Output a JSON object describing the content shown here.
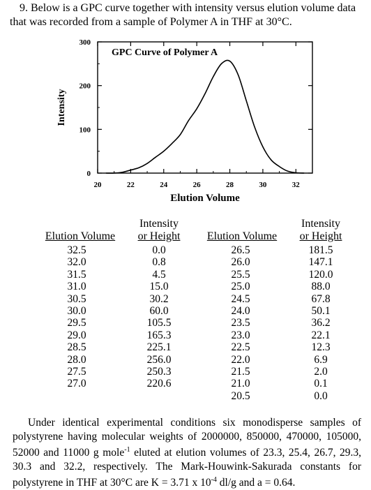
{
  "question": {
    "number": "9.",
    "text": "Below is a GPC curve together with intensity versus elution volume data that was recorded from a sample of Polymer A in THF at 30°C."
  },
  "chart_data": {
    "type": "line",
    "title": "GPC Curve of Polymer A",
    "xlabel": "Elution Volume",
    "ylabel": "Intensity",
    "xlim": [
      20,
      33
    ],
    "ylim": [
      0,
      300
    ],
    "x_ticks": [
      "20",
      "22",
      "24",
      "26",
      "28",
      "30",
      "32"
    ],
    "y_ticks": [
      "300",
      "200",
      "100",
      "0"
    ],
    "series": [
      {
        "x": [
          20.5,
          21.0,
          21.5,
          22.0,
          22.5,
          23.0,
          23.5,
          24.0,
          24.5,
          25.0,
          25.5,
          26.0,
          26.5,
          27.0,
          27.5,
          28.0,
          28.5,
          29.0,
          29.5,
          30.0,
          30.5,
          31.0,
          31.5,
          32.0,
          32.5
        ],
        "y": [
          0.0,
          0.1,
          2.0,
          6.9,
          12.3,
          22.1,
          36.2,
          50.1,
          67.8,
          88.0,
          120.0,
          147.1,
          181.5,
          220.6,
          250.3,
          256.0,
          225.1,
          165.3,
          105.5,
          60.0,
          30.2,
          15.0,
          4.5,
          0.8,
          0.0
        ]
      }
    ]
  },
  "table": {
    "headers": {
      "elution": "Elution Volume",
      "intensity_line1": "Intensity",
      "intensity_line2": "or Height"
    },
    "left": {
      "elution": [
        "32.5",
        "32.0",
        "31.5",
        "31.0",
        "30.5",
        "30.0",
        "29.5",
        "29.0",
        "28.5",
        "28.0",
        "27.5",
        "27.0"
      ],
      "intensity": [
        "0.0",
        "0.8",
        "4.5",
        "15.0",
        "30.2",
        "60.0",
        "105.5",
        "165.3",
        "225.1",
        "256.0",
        "250.3",
        "220.6"
      ]
    },
    "right": {
      "elution": [
        "26.5",
        "26.0",
        "25.5",
        "25.0",
        "24.5",
        "24.0",
        "23.5",
        "23.0",
        "22.5",
        "22.0",
        "21.5",
        "21.0",
        "20.5"
      ],
      "intensity": [
        "181.5",
        "147.1",
        "120.0",
        "88.0",
        "67.8",
        "50.1",
        "36.2",
        "22.1",
        "12.3",
        "6.9",
        "2.0",
        "0.1",
        "0.0"
      ]
    }
  },
  "closing": {
    "p1": "Under identical experimental conditions six monodisperse samples of polystyrene having molecular weights of 2000000, 850000, 470000, 105000, 52000 and 11000 g mole",
    "exp1": "-1",
    "p2": " eluted at elution volumes of 23.3, 25.4, 26.7, 29.3, 30.3 and 32.2, respectively.  The Mark-Houwink-Sakurada constants for polystyrene in THF at 30°C are K = 3.71 x 10",
    "exp2": "-4",
    "p3": " dl/g and a = 0.64."
  }
}
